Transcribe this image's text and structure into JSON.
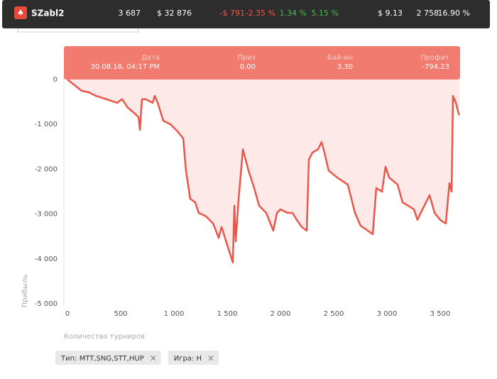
{
  "header": {
    "user": "SZabl2",
    "stats": [
      {
        "text": "3 687",
        "color": "#ffffff"
      },
      {
        "text": "$ 32 876",
        "color": "#ffffff"
      },
      {
        "text": "-$ 791",
        "color": "#f0564a"
      },
      {
        "text": "-2.35 %",
        "color": "#f0564a"
      },
      {
        "text": "1.34 %",
        "color": "#3fc14a"
      },
      {
        "text": "5.15 %",
        "color": "#3fc14a"
      },
      {
        "text": "$ 9.13",
        "color": "#ffffff"
      },
      {
        "text": "2 758",
        "color": "#ffffff"
      },
      {
        "text": "16.90 %",
        "color": "#ffffff"
      }
    ]
  },
  "tooltip": [
    {
      "label": "Дата",
      "value": "30.08.16, 04:17 PM"
    },
    {
      "label": "Приз",
      "value": "0.00"
    },
    {
      "label": "Бай-ин",
      "value": "3.30"
    },
    {
      "label": "Профит",
      "value": "-794.23"
    }
  ],
  "chart_data": {
    "type": "area",
    "x_label": "Количество турниров",
    "y_label": "Прибыль",
    "xlim": [
      0,
      3700
    ],
    "xticks": [
      0,
      500,
      {
        "value": 1000,
        "label": "1 000"
      },
      {
        "value": 1500,
        "label": "1 500"
      },
      {
        "value": 2000,
        "label": "2 000"
      },
      {
        "value": 2500,
        "label": "2 500"
      },
      {
        "value": 3000,
        "label": "3 000"
      },
      {
        "value": 3500,
        "label": "3 500"
      }
    ],
    "ylim": [
      -5000,
      0
    ],
    "yticks": [
      0,
      {
        "value": -1000,
        "label": "-1 000"
      },
      {
        "value": -2000,
        "label": "-2 000"
      },
      {
        "value": -3000,
        "label": "-3 000"
      },
      {
        "value": -4000,
        "label": "-4 000"
      },
      {
        "value": -5000,
        "label": "-5 000"
      }
    ],
    "grid": false,
    "series": [
      {
        "color": "#e8574a",
        "fill": "#fde9e7",
        "x": [
          0,
          67,
          133,
          200,
          267,
          367,
          467,
          513,
          567,
          633,
          667,
          680,
          700,
          733,
          800,
          820,
          847,
          900,
          967,
          1033,
          1087,
          1113,
          1153,
          1200,
          1233,
          1300,
          1367,
          1420,
          1447,
          1500,
          1533,
          1553,
          1567,
          1580,
          1607,
          1647,
          1700,
          1753,
          1800,
          1867,
          1933,
          1967,
          2000,
          2067,
          2113,
          2153,
          2200,
          2247,
          2267,
          2300,
          2353,
          2387,
          2413,
          2453,
          2533,
          2633,
          2700,
          2753,
          2820,
          2867,
          2900,
          2953,
          2987,
          3020,
          3100,
          3147,
          3200,
          3253,
          3287,
          3333,
          3367,
          3400,
          3447,
          3500,
          3553,
          3587,
          3607,
          3620,
          3647,
          3673,
          3680
        ],
        "values": [
          0,
          -127,
          -253,
          -285,
          -365,
          -440,
          -520,
          -440,
          -630,
          -760,
          -840,
          -1125,
          -440,
          -440,
          -520,
          -365,
          -520,
          -920,
          -1000,
          -1155,
          -1315,
          -2030,
          -2660,
          -2740,
          -2975,
          -3050,
          -3210,
          -3530,
          -3290,
          -3690,
          -3925,
          -4080,
          -2815,
          -3610,
          -2660,
          -1555,
          -2030,
          -2420,
          -2815,
          -2975,
          -3370,
          -2975,
          -2895,
          -2975,
          -2975,
          -3130,
          -3290,
          -3370,
          -1790,
          -1630,
          -1555,
          -1395,
          -1630,
          -2030,
          -2185,
          -2345,
          -2975,
          -3260,
          -3370,
          -3450,
          -2420,
          -2500,
          -1945,
          -2185,
          -2345,
          -2740,
          -2815,
          -2895,
          -3130,
          -2895,
          -2740,
          -2580,
          -2975,
          -3130,
          -3210,
          -2310,
          -2500,
          -365,
          -520,
          -760,
          -794
        ]
      }
    ]
  },
  "filters": [
    {
      "text": "Тип: MTT,SNG,STT,HUP"
    },
    {
      "text": "Игра: Н"
    }
  ]
}
